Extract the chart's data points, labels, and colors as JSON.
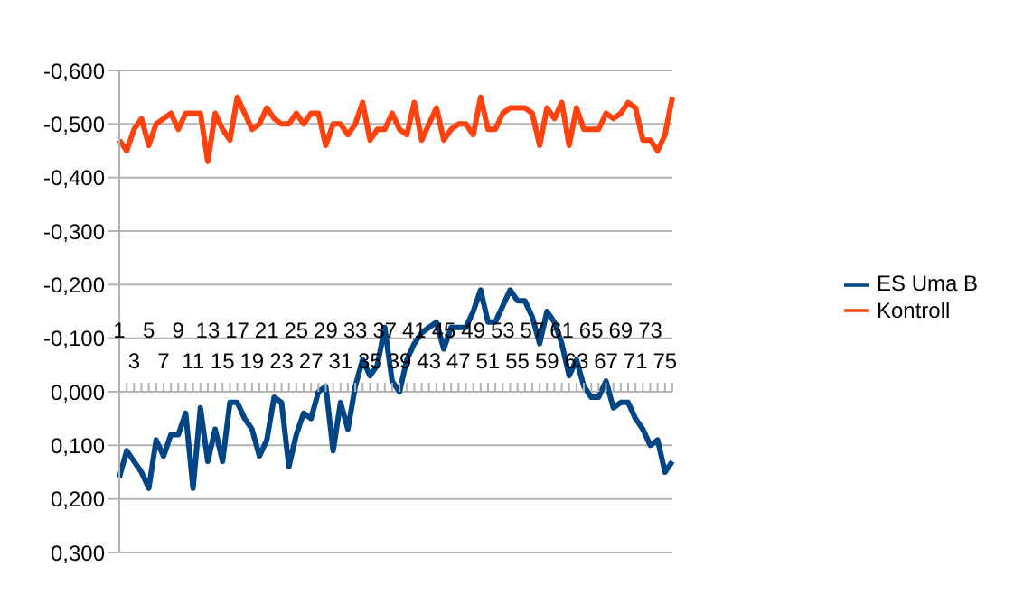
{
  "chart_data": {
    "type": "line",
    "categories": [
      "1",
      null,
      "3",
      null,
      "5",
      null,
      "7",
      null,
      "9",
      null,
      "11",
      null,
      "13",
      null,
      "15",
      null,
      "17",
      null,
      "19",
      null,
      "21",
      null,
      "23",
      null,
      "25",
      null,
      "27",
      null,
      "29",
      null,
      "31",
      null,
      "33",
      null,
      "35",
      null,
      "37",
      null,
      "39",
      null,
      "41",
      null,
      "43",
      null,
      "45",
      null,
      "47",
      null,
      "49",
      null,
      "51",
      null,
      "53",
      null,
      "55",
      null,
      "57",
      null,
      "59",
      null,
      "61",
      null,
      "63",
      null,
      "65",
      null,
      "67",
      null,
      "69",
      null,
      "71",
      null,
      "73",
      null,
      "75",
      null
    ],
    "series": [
      {
        "name": "ES Uma B",
        "color": "#004586",
        "values": [
          0.16,
          0.11,
          0.13,
          0.15,
          0.18,
          0.09,
          0.12,
          0.08,
          0.08,
          0.04,
          0.18,
          0.03,
          0.13,
          0.07,
          0.13,
          0.02,
          0.02,
          0.05,
          0.07,
          0.12,
          0.09,
          0.01,
          0.02,
          0.14,
          0.08,
          0.04,
          0.05,
          0.0,
          -0.01,
          0.11,
          0.02,
          0.07,
          -0.01,
          -0.06,
          -0.03,
          -0.05,
          -0.12,
          -0.02,
          0.0,
          -0.06,
          -0.09,
          -0.11,
          -0.12,
          -0.13,
          -0.08,
          -0.12,
          -0.12,
          -0.12,
          -0.15,
          -0.19,
          -0.13,
          -0.13,
          -0.16,
          -0.19,
          -0.17,
          -0.17,
          -0.14,
          -0.09,
          -0.15,
          -0.13,
          -0.09,
          -0.03,
          -0.06,
          -0.01,
          0.01,
          0.01,
          -0.02,
          0.03,
          0.02,
          0.02,
          0.05,
          0.07,
          0.1,
          0.09,
          0.15,
          0.13
        ]
      },
      {
        "name": "Kontroll",
        "color": "#ff420e",
        "values": [
          -0.47,
          -0.45,
          -0.49,
          -0.51,
          -0.46,
          -0.5,
          -0.51,
          -0.52,
          -0.49,
          -0.52,
          -0.52,
          -0.52,
          -0.43,
          -0.52,
          -0.49,
          -0.47,
          -0.55,
          -0.52,
          -0.49,
          -0.5,
          -0.53,
          -0.51,
          -0.5,
          -0.5,
          -0.52,
          -0.5,
          -0.52,
          -0.52,
          -0.46,
          -0.5,
          -0.5,
          -0.48,
          -0.5,
          -0.54,
          -0.47,
          -0.49,
          -0.49,
          -0.52,
          -0.49,
          -0.48,
          -0.54,
          -0.47,
          -0.5,
          -0.53,
          -0.47,
          -0.49,
          -0.5,
          -0.5,
          -0.48,
          -0.55,
          -0.49,
          -0.49,
          -0.52,
          -0.53,
          -0.53,
          -0.53,
          -0.52,
          -0.46,
          -0.53,
          -0.51,
          -0.54,
          -0.46,
          -0.53,
          -0.49,
          -0.49,
          -0.49,
          -0.52,
          -0.51,
          -0.52,
          -0.54,
          -0.53,
          -0.47,
          -0.47,
          -0.45,
          -0.48,
          -0.55
        ]
      }
    ],
    "ylim": [
      0.3,
      -0.6
    ],
    "yticks": [
      {
        "value": -0.6,
        "label": "-0,600"
      },
      {
        "value": -0.5,
        "label": "-0,500"
      },
      {
        "value": -0.4,
        "label": "-0,400"
      },
      {
        "value": -0.3,
        "label": "-0,300"
      },
      {
        "value": -0.2,
        "label": "-0,200"
      },
      {
        "value": -0.1,
        "label": "-0,100"
      },
      {
        "value": 0,
        "label": "0,000"
      },
      {
        "value": 0.1,
        "label": "0,100"
      },
      {
        "value": 0.2,
        "label": "0,200"
      },
      {
        "value": 0.3,
        "label": "0,300"
      }
    ],
    "grid": "y",
    "legend": "right",
    "marker": "none",
    "line_style": "solid"
  }
}
